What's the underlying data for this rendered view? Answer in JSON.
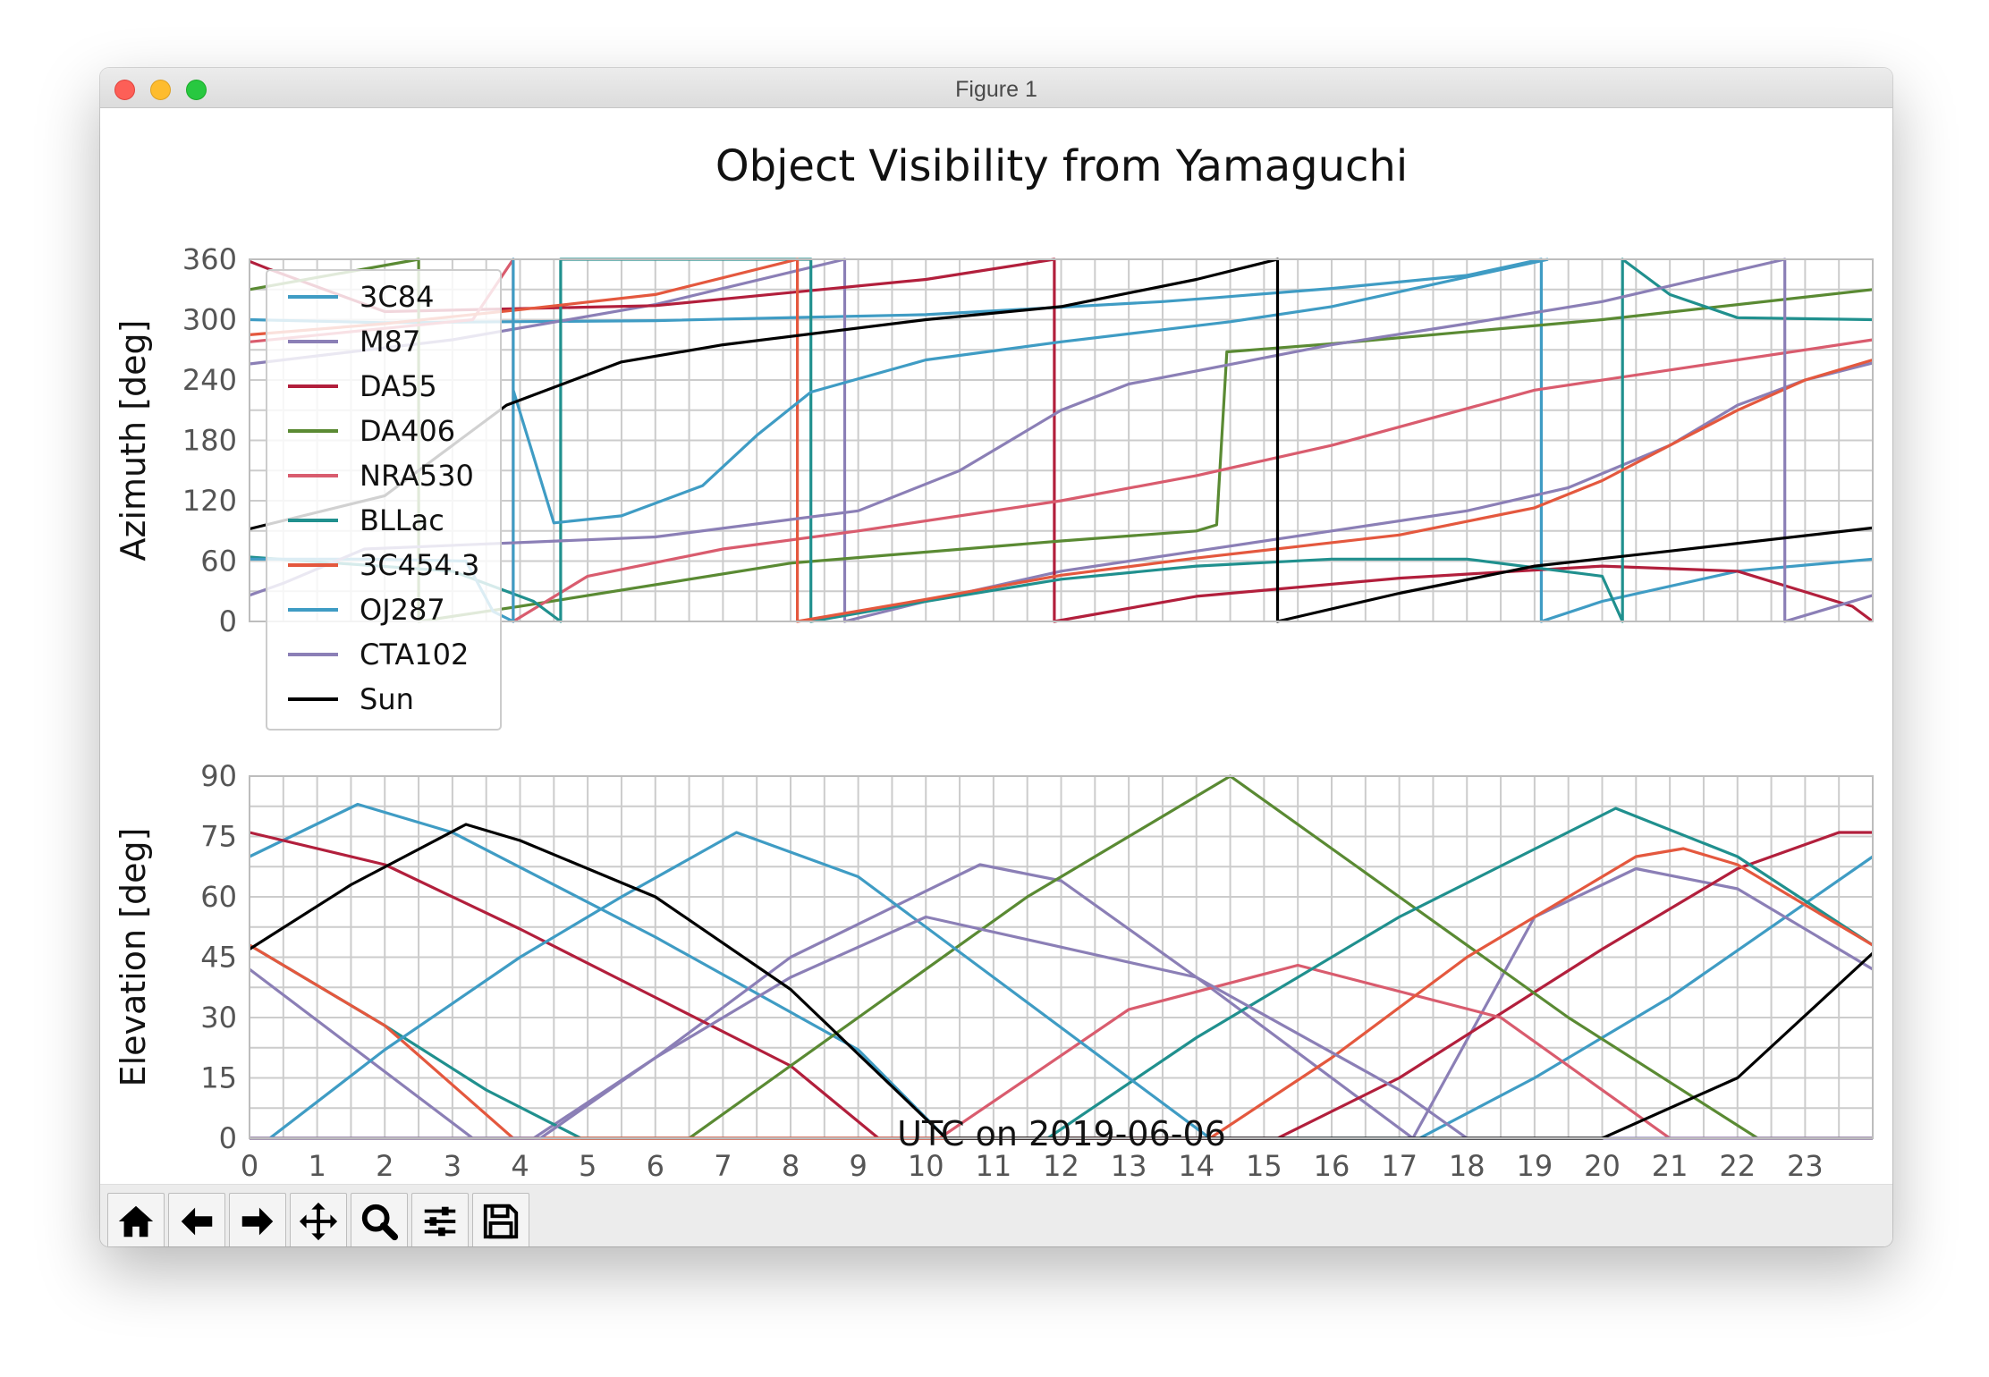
{
  "window": {
    "title": "Figure 1",
    "traffic_lights": {
      "close": "#fd5f57",
      "minimize": "#febc2e",
      "maximize": "#28c840"
    }
  },
  "toolbar": [
    {
      "name": "home",
      "icon": "home-icon"
    },
    {
      "name": "back",
      "icon": "arrow-left-icon"
    },
    {
      "name": "forward",
      "icon": "arrow-right-icon"
    },
    {
      "name": "pan",
      "icon": "move-icon"
    },
    {
      "name": "zoom",
      "icon": "magnifier-icon"
    },
    {
      "name": "configure-subplots",
      "icon": "sliders-icon"
    },
    {
      "name": "save",
      "icon": "floppy-disk-icon"
    }
  ],
  "chart_data": {
    "type": "line",
    "title": "Object Visibility from Yamaguchi",
    "xlabel": "UTC on 2019-06-06",
    "xlim": [
      0,
      24
    ],
    "xticks": [
      0,
      1,
      2,
      3,
      4,
      5,
      6,
      7,
      8,
      9,
      10,
      11,
      12,
      13,
      14,
      15,
      16,
      17,
      18,
      19,
      20,
      21,
      22,
      23
    ],
    "grid": true,
    "legend": {
      "location": "upper-left of top panel"
    },
    "panels": [
      {
        "name": "azimuth",
        "ylabel": "Azimuth [deg]",
        "ylim": [
          0,
          360
        ],
        "yticks": [
          0,
          60,
          120,
          180,
          240,
          300,
          360
        ]
      },
      {
        "name": "elevation",
        "ylabel": "Elevation [deg]",
        "ylim": [
          0,
          90
        ],
        "yticks": [
          0,
          15,
          30,
          45,
          60,
          75,
          90
        ]
      }
    ],
    "series": [
      {
        "name": "3C84",
        "color": "#3f9cc4",
        "azimuth": [
          [
            0,
            300
          ],
          [
            2,
            297
          ],
          [
            6,
            299
          ],
          [
            10,
            305
          ],
          [
            13.5,
            318
          ],
          [
            14.3,
            322
          ],
          [
            16,
            331
          ],
          [
            18,
            344
          ],
          [
            19.1,
            360
          ],
          [
            19.1,
            0
          ],
          [
            20,
            20
          ],
          [
            22,
            50
          ],
          [
            24,
            62
          ]
        ],
        "elevation": [
          [
            0,
            70
          ],
          [
            1.6,
            83
          ],
          [
            3,
            76
          ],
          [
            6,
            50
          ],
          [
            9,
            22
          ],
          [
            10.3,
            0
          ],
          [
            17.3,
            0
          ],
          [
            19,
            15
          ],
          [
            21,
            35
          ],
          [
            24,
            70
          ]
        ]
      },
      {
        "name": "M87",
        "color": "#8b7fb6",
        "azimuth": [
          [
            0,
            256
          ],
          [
            3,
            280
          ],
          [
            6,
            315
          ],
          [
            8.8,
            360
          ],
          [
            8.8,
            0
          ],
          [
            10,
            20
          ],
          [
            12,
            50
          ],
          [
            14,
            70
          ],
          [
            16,
            90
          ],
          [
            18,
            110
          ],
          [
            19.5,
            133
          ],
          [
            21,
            175
          ],
          [
            22,
            215
          ],
          [
            23,
            240
          ],
          [
            24,
            257
          ]
        ],
        "elevation": [
          [
            0,
            42
          ],
          [
            3.3,
            0
          ],
          [
            4.2,
            0
          ],
          [
            6,
            20
          ],
          [
            8,
            45
          ],
          [
            10.8,
            68
          ],
          [
            12,
            64
          ],
          [
            14,
            40
          ],
          [
            17.2,
            0
          ],
          [
            19,
            55
          ],
          [
            20.5,
            67
          ],
          [
            22,
            62
          ],
          [
            24,
            42
          ]
        ]
      },
      {
        "name": "DA55",
        "color": "#b21f3c",
        "azimuth": [
          [
            0,
            358
          ],
          [
            0.3,
            350
          ],
          [
            2,
            308
          ],
          [
            6,
            314
          ],
          [
            10,
            340
          ],
          [
            11.9,
            360
          ],
          [
            11.9,
            0
          ],
          [
            14,
            25
          ],
          [
            17,
            43
          ],
          [
            20,
            55
          ],
          [
            22,
            50
          ],
          [
            23.7,
            15
          ],
          [
            24,
            0
          ]
        ],
        "elevation": [
          [
            0,
            76
          ],
          [
            2,
            68
          ],
          [
            4,
            52
          ],
          [
            6,
            35
          ],
          [
            8,
            18
          ],
          [
            9.3,
            0
          ],
          [
            15.2,
            0
          ],
          [
            17,
            15
          ],
          [
            20,
            47
          ],
          [
            22,
            67
          ],
          [
            23.5,
            76
          ],
          [
            24,
            76
          ]
        ]
      },
      {
        "name": "DA406",
        "color": "#5a8a33",
        "azimuth": [
          [
            0,
            330
          ],
          [
            2.5,
            360
          ],
          [
            2.5,
            0
          ],
          [
            4,
            15
          ],
          [
            8,
            58
          ],
          [
            12,
            80
          ],
          [
            14,
            90
          ],
          [
            14.3,
            96
          ],
          [
            14.45,
            268
          ],
          [
            16,
            276
          ],
          [
            20,
            300
          ],
          [
            24,
            330
          ]
        ],
        "elevation": [
          [
            0,
            0
          ],
          [
            6.5,
            0
          ],
          [
            9,
            30
          ],
          [
            11.5,
            60
          ],
          [
            14.5,
            90
          ],
          [
            17,
            60
          ],
          [
            19.5,
            30
          ],
          [
            22.3,
            0
          ],
          [
            24,
            0
          ]
        ]
      },
      {
        "name": "NRA530",
        "color": "#d95c6e",
        "azimuth": [
          [
            0,
            278
          ],
          [
            3.3,
            300
          ],
          [
            3.9,
            360
          ],
          [
            3.9,
            0
          ],
          [
            5,
            45
          ],
          [
            7,
            72
          ],
          [
            9,
            90
          ],
          [
            12,
            120
          ],
          [
            14,
            145
          ],
          [
            16,
            175
          ],
          [
            19,
            230
          ],
          [
            21,
            250
          ],
          [
            24,
            280
          ]
        ],
        "elevation": [
          [
            0,
            0
          ],
          [
            10.2,
            0
          ],
          [
            13,
            32
          ],
          [
            15.5,
            43
          ],
          [
            18.5,
            30
          ],
          [
            21,
            0
          ],
          [
            24,
            0
          ]
        ]
      },
      {
        "name": "BLLac",
        "color": "#20908e",
        "azimuth": [
          [
            0,
            64
          ],
          [
            3,
            50
          ],
          [
            4.2,
            20
          ],
          [
            4.6,
            0
          ],
          [
            4.6,
            360
          ],
          [
            8.3,
            360
          ],
          [
            8.3,
            0
          ],
          [
            10,
            20
          ],
          [
            12,
            42
          ],
          [
            14,
            55
          ],
          [
            16,
            62
          ],
          [
            18,
            62
          ],
          [
            20,
            45
          ],
          [
            20.3,
            0
          ],
          [
            20.3,
            360
          ],
          [
            21,
            325
          ],
          [
            22,
            302
          ],
          [
            24,
            300
          ]
        ],
        "elevation": [
          [
            0,
            48
          ],
          [
            2,
            28
          ],
          [
            3.5,
            12
          ],
          [
            4.9,
            0
          ],
          [
            11.8,
            0
          ],
          [
            14,
            25
          ],
          [
            17,
            55
          ],
          [
            20.2,
            82
          ],
          [
            22,
            70
          ],
          [
            24,
            48
          ]
        ]
      },
      {
        "name": "3C454.3",
        "color": "#e4583e",
        "azimuth": [
          [
            0,
            285
          ],
          [
            2,
            296
          ],
          [
            4,
            310
          ],
          [
            6,
            325
          ],
          [
            8.1,
            360
          ],
          [
            8.1,
            0
          ],
          [
            10,
            22
          ],
          [
            12,
            46
          ],
          [
            14,
            63
          ],
          [
            17,
            86
          ],
          [
            19,
            113
          ],
          [
            20,
            140
          ],
          [
            21,
            175
          ],
          [
            22,
            210
          ],
          [
            23,
            240
          ],
          [
            24,
            260
          ]
        ],
        "elevation": [
          [
            0,
            48
          ],
          [
            2,
            28
          ],
          [
            3.9,
            0
          ],
          [
            14.2,
            0
          ],
          [
            16,
            20
          ],
          [
            18,
            45
          ],
          [
            20.5,
            70
          ],
          [
            21.2,
            72
          ],
          [
            22,
            68
          ],
          [
            24,
            48
          ]
        ]
      },
      {
        "name": "OJ287",
        "color": "#3f9cc4",
        "azimuth": [
          [
            0,
            62
          ],
          [
            1.8,
            62
          ],
          [
            3.2,
            60
          ],
          [
            3.6,
            10
          ],
          [
            3.9,
            0
          ],
          [
            3.9,
            360
          ],
          [
            3.9,
            230
          ],
          [
            4.5,
            98
          ],
          [
            5.5,
            105
          ],
          [
            6.7,
            135
          ],
          [
            7.5,
            185
          ],
          [
            8.3,
            228
          ],
          [
            10,
            260
          ],
          [
            12,
            278
          ],
          [
            13.5,
            290
          ],
          [
            14.5,
            298
          ],
          [
            16,
            313
          ],
          [
            19.2,
            360
          ]
        ],
        "elevation": [
          [
            0.3,
            0
          ],
          [
            2,
            22
          ],
          [
            4,
            45
          ],
          [
            5.5,
            60
          ],
          [
            7.2,
            76
          ],
          [
            9,
            65
          ],
          [
            11,
            40
          ],
          [
            14.2,
            0
          ]
        ]
      },
      {
        "name": "CTA102",
        "color": "#8b7fb6",
        "azimuth": [
          [
            0,
            26
          ],
          [
            0.5,
            38
          ],
          [
            1.7,
            72
          ],
          [
            6,
            84
          ],
          [
            9,
            110
          ],
          [
            10.5,
            150
          ],
          [
            12,
            210
          ],
          [
            13,
            236
          ],
          [
            16,
            275
          ],
          [
            18,
            296
          ],
          [
            20,
            318
          ],
          [
            22.7,
            360
          ],
          [
            22.7,
            0
          ],
          [
            24,
            26
          ]
        ],
        "elevation": [
          [
            0,
            0
          ],
          [
            4.3,
            0
          ],
          [
            6,
            20
          ],
          [
            8,
            40
          ],
          [
            10,
            55
          ],
          [
            14,
            40
          ],
          [
            17,
            12
          ],
          [
            18,
            0
          ],
          [
            24,
            0
          ]
        ]
      },
      {
        "name": "Sun",
        "color": "#000000",
        "azimuth": [
          [
            0,
            92
          ],
          [
            2,
            125
          ],
          [
            3.8,
            215
          ],
          [
            5.5,
            258
          ],
          [
            7,
            275
          ],
          [
            10,
            300
          ],
          [
            12,
            313
          ],
          [
            14,
            340
          ],
          [
            15.2,
            360
          ],
          [
            15.2,
            0
          ],
          [
            17,
            28
          ],
          [
            19,
            55
          ],
          [
            21,
            70
          ],
          [
            24,
            93
          ]
        ],
        "elevation": [
          [
            0,
            47
          ],
          [
            1.5,
            63
          ],
          [
            3.2,
            78
          ],
          [
            4,
            74
          ],
          [
            6,
            60
          ],
          [
            8,
            37
          ],
          [
            10.3,
            0
          ],
          [
            20,
            0
          ],
          [
            22,
            15
          ],
          [
            24,
            46
          ]
        ]
      }
    ]
  }
}
